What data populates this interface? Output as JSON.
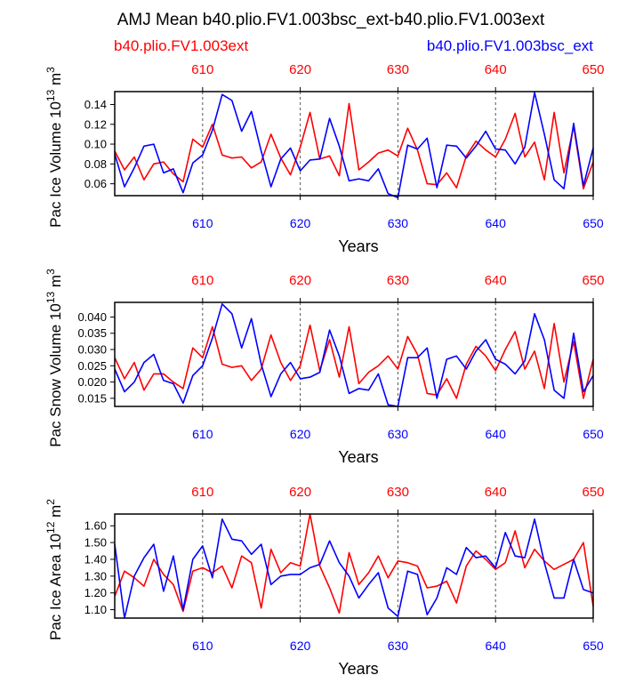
{
  "title": "AMJ Mean b40.plio.FV1.003bsc_ext-b40.plio.FV1.003ext",
  "legend": {
    "red": {
      "label": "b40.plio.FV1.003ext",
      "color": "#ff0000"
    },
    "blue": {
      "label": "b40.plio.FV1.003bsc_ext",
      "color": "#0000ff"
    }
  },
  "chart_data": [
    {
      "type": "line",
      "ylabel": "Pac Ice Volume 10",
      "ylabel_exp": "13",
      "ylabel_unit": " m",
      "ylabel_unit_exp": "3",
      "xlabel": "Years",
      "xlim": [
        601,
        650
      ],
      "ylim": [
        0.048,
        0.153
      ],
      "yticks": [
        0.06,
        0.08,
        0.1,
        0.12,
        0.14
      ],
      "ytick_labels": [
        "0.06",
        "0.08",
        "0.10",
        "0.12",
        "0.14"
      ],
      "xticks": [
        610,
        620,
        630,
        640,
        650
      ],
      "top_ticks": [
        610,
        620,
        630,
        640,
        650
      ],
      "gridlines_x": [
        610,
        620,
        630,
        640
      ],
      "x": [
        601,
        602,
        603,
        604,
        605,
        606,
        607,
        608,
        609,
        610,
        611,
        612,
        613,
        614,
        615,
        616,
        617,
        618,
        619,
        620,
        621,
        622,
        623,
        624,
        625,
        626,
        627,
        628,
        629,
        630,
        631,
        632,
        633,
        634,
        635,
        636,
        637,
        638,
        639,
        640,
        641,
        642,
        643,
        644,
        645,
        646,
        647,
        648,
        649,
        650
      ],
      "series": [
        {
          "name": "b40.plio.FV1.003ext",
          "color": "#ff0000",
          "values": [
            0.093,
            0.074,
            0.087,
            0.064,
            0.08,
            0.082,
            0.07,
            0.062,
            0.105,
            0.097,
            0.12,
            0.089,
            0.086,
            0.087,
            0.076,
            0.082,
            0.11,
            0.086,
            0.069,
            0.097,
            0.132,
            0.085,
            0.088,
            0.068,
            0.141,
            0.074,
            0.082,
            0.091,
            0.094,
            0.088,
            0.116,
            0.094,
            0.06,
            0.059,
            0.071,
            0.056,
            0.088,
            0.103,
            0.094,
            0.087,
            0.105,
            0.131,
            0.087,
            0.102,
            0.064,
            0.132,
            0.071,
            0.118,
            0.055,
            0.082
          ]
        },
        {
          "name": "b40.plio.FV1.003bsc_ext",
          "color": "#0000ff",
          "values": [
            0.09,
            0.057,
            0.076,
            0.098,
            0.1,
            0.071,
            0.075,
            0.051,
            0.081,
            0.089,
            0.114,
            0.15,
            0.144,
            0.113,
            0.133,
            0.093,
            0.057,
            0.085,
            0.096,
            0.073,
            0.084,
            0.085,
            0.126,
            0.098,
            0.063,
            0.065,
            0.063,
            0.075,
            0.05,
            0.046,
            0.099,
            0.095,
            0.106,
            0.056,
            0.099,
            0.098,
            0.086,
            0.098,
            0.113,
            0.095,
            0.094,
            0.08,
            0.097,
            0.152,
            0.11,
            0.064,
            0.055,
            0.121,
            0.058,
            0.096
          ]
        }
      ]
    },
    {
      "type": "line",
      "ylabel": "Pac Snow Volume 10",
      "ylabel_exp": "13",
      "ylabel_unit": " m",
      "ylabel_unit_exp": "3",
      "xlabel": "Years",
      "xlim": [
        601,
        650
      ],
      "ylim": [
        0.0125,
        0.0445
      ],
      "yticks": [
        0.015,
        0.02,
        0.025,
        0.03,
        0.035,
        0.04
      ],
      "ytick_labels": [
        "0.015",
        "0.020",
        "0.025",
        "0.030",
        "0.035",
        "0.040"
      ],
      "xticks": [
        610,
        620,
        630,
        640,
        650
      ],
      "top_ticks": [
        610,
        620,
        630,
        640,
        650
      ],
      "gridlines_x": [
        610,
        620,
        630,
        640
      ],
      "x": [
        601,
        602,
        603,
        604,
        605,
        606,
        607,
        608,
        609,
        610,
        611,
        612,
        613,
        614,
        615,
        616,
        617,
        618,
        619,
        620,
        621,
        622,
        623,
        624,
        625,
        626,
        627,
        628,
        629,
        630,
        631,
        632,
        633,
        634,
        635,
        636,
        637,
        638,
        639,
        640,
        641,
        642,
        643,
        644,
        645,
        646,
        647,
        648,
        649,
        650
      ],
      "series": [
        {
          "name": "b40.plio.FV1.003ext",
          "color": "#ff0000",
          "values": [
            0.0275,
            0.021,
            0.026,
            0.0175,
            0.0225,
            0.0225,
            0.02,
            0.018,
            0.0305,
            0.0275,
            0.037,
            0.0255,
            0.0245,
            0.025,
            0.0205,
            0.024,
            0.0345,
            0.026,
            0.0205,
            0.025,
            0.0375,
            0.0235,
            0.033,
            0.0215,
            0.037,
            0.0195,
            0.023,
            0.025,
            0.028,
            0.024,
            0.034,
            0.0285,
            0.0165,
            0.016,
            0.021,
            0.015,
            0.0255,
            0.031,
            0.028,
            0.0235,
            0.03,
            0.0355,
            0.024,
            0.0295,
            0.018,
            0.038,
            0.02,
            0.0325,
            0.015,
            0.027
          ]
        },
        {
          "name": "b40.plio.FV1.003bsc_ext",
          "color": "#0000ff",
          "values": [
            0.024,
            0.017,
            0.02,
            0.026,
            0.0285,
            0.0205,
            0.0195,
            0.0135,
            0.022,
            0.025,
            0.0335,
            0.044,
            0.041,
            0.0305,
            0.0395,
            0.0255,
            0.0155,
            0.0225,
            0.026,
            0.021,
            0.0215,
            0.023,
            0.036,
            0.028,
            0.0165,
            0.018,
            0.0175,
            0.0225,
            0.013,
            0.0125,
            0.0275,
            0.0275,
            0.0305,
            0.015,
            0.027,
            0.028,
            0.024,
            0.0295,
            0.033,
            0.027,
            0.0255,
            0.0225,
            0.0265,
            0.041,
            0.033,
            0.0175,
            0.015,
            0.035,
            0.017,
            0.022
          ]
        }
      ]
    },
    {
      "type": "line",
      "ylabel": "Pac Ice Area 10",
      "ylabel_exp": "12",
      "ylabel_unit": " m",
      "ylabel_unit_exp": "2",
      "xlabel": "Years",
      "xlim": [
        601,
        650
      ],
      "ylim": [
        1.05,
        1.67
      ],
      "yticks": [
        1.1,
        1.2,
        1.3,
        1.4,
        1.5,
        1.6
      ],
      "ytick_labels": [
        "1.10",
        "1.20",
        "1.30",
        "1.40",
        "1.50",
        "1.60"
      ],
      "xticks": [
        610,
        620,
        630,
        640,
        650
      ],
      "top_ticks": [
        610,
        620,
        630,
        640,
        650
      ],
      "gridlines_x": [
        610,
        620,
        630,
        640
      ],
      "x": [
        601,
        602,
        603,
        604,
        605,
        606,
        607,
        608,
        609,
        610,
        611,
        612,
        613,
        614,
        615,
        616,
        617,
        618,
        619,
        620,
        621,
        622,
        623,
        624,
        625,
        626,
        627,
        628,
        629,
        630,
        631,
        632,
        633,
        634,
        635,
        636,
        637,
        638,
        639,
        640,
        641,
        642,
        643,
        644,
        645,
        646,
        647,
        648,
        649,
        650
      ],
      "series": [
        {
          "name": "b40.plio.FV1.003ext",
          "color": "#ff0000",
          "values": [
            1.18,
            1.33,
            1.29,
            1.24,
            1.4,
            1.31,
            1.25,
            1.09,
            1.33,
            1.35,
            1.32,
            1.36,
            1.23,
            1.42,
            1.38,
            1.11,
            1.46,
            1.32,
            1.38,
            1.36,
            1.67,
            1.36,
            1.23,
            1.08,
            1.44,
            1.25,
            1.32,
            1.42,
            1.29,
            1.39,
            1.38,
            1.36,
            1.23,
            1.24,
            1.27,
            1.14,
            1.36,
            1.45,
            1.4,
            1.34,
            1.38,
            1.57,
            1.35,
            1.46,
            1.39,
            1.34,
            1.37,
            1.4,
            1.5,
            1.12
          ]
        },
        {
          "name": "b40.plio.FV1.003bsc_ext",
          "color": "#0000ff",
          "values": [
            1.49,
            1.05,
            1.3,
            1.41,
            1.49,
            1.21,
            1.42,
            1.1,
            1.4,
            1.48,
            1.29,
            1.64,
            1.52,
            1.51,
            1.43,
            1.49,
            1.25,
            1.3,
            1.31,
            1.31,
            1.35,
            1.37,
            1.51,
            1.38,
            1.3,
            1.17,
            1.25,
            1.32,
            1.11,
            1.06,
            1.33,
            1.31,
            1.07,
            1.17,
            1.35,
            1.31,
            1.47,
            1.41,
            1.42,
            1.35,
            1.56,
            1.42,
            1.41,
            1.64,
            1.38,
            1.17,
            1.17,
            1.4,
            1.22,
            1.2
          ]
        }
      ]
    }
  ]
}
